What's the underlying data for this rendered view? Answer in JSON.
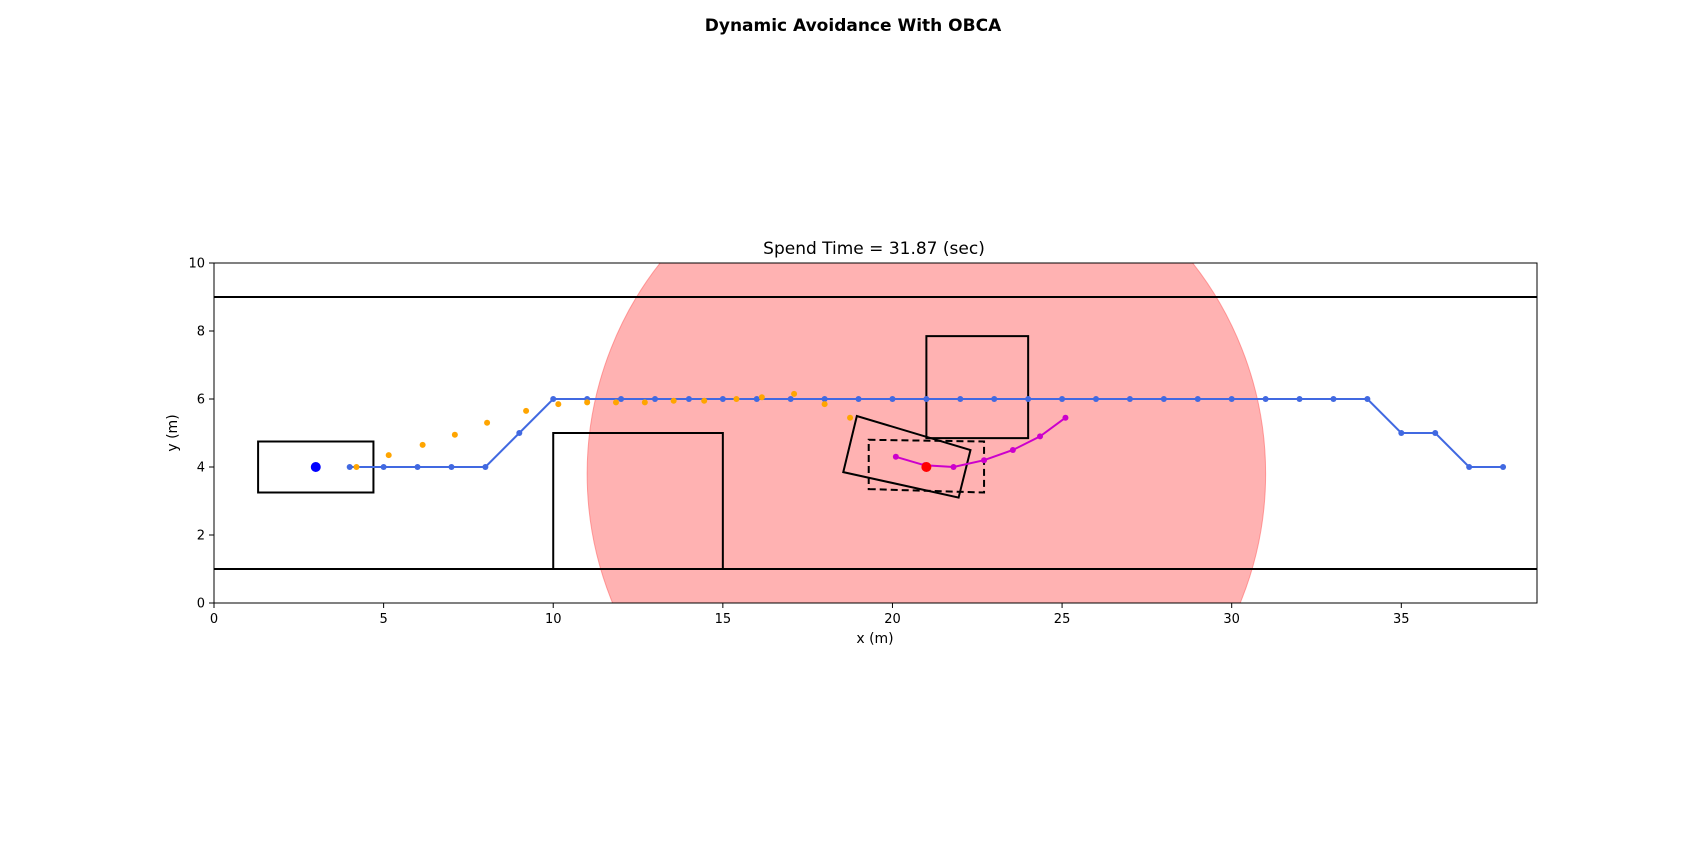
{
  "figure": {
    "suptitle": "Dynamic Avoidance With OBCA"
  },
  "chart_data": {
    "type": "scatter",
    "title": "Spend Time = 31.87 (sec)",
    "xlabel": "x (m)",
    "ylabel": "y (m)",
    "xlim": [
      0,
      39
    ],
    "ylim": [
      0,
      10
    ],
    "xticks": [
      0,
      5,
      10,
      15,
      20,
      25,
      30,
      35
    ],
    "yticks": [
      0,
      2,
      4,
      6,
      8,
      10
    ],
    "grid": false,
    "colors": {
      "reference_path": "#4169e1",
      "predicted_trajectory": "#ffa500",
      "obstacle_trajectory": "#cc00cc",
      "safety_region": "#ff6666",
      "ego_position": "#0000ff",
      "obstacle_position": "#ff0000",
      "outline": "#000000"
    },
    "road_boundaries": [
      {
        "y": 1.0,
        "x": [
          0,
          39
        ]
      },
      {
        "y": 9.0,
        "x": [
          0,
          39
        ]
      }
    ],
    "safety_region": {
      "center": [
        21.0,
        3.8
      ],
      "radius": 10.0
    },
    "static_obstacles": [
      {
        "name": "lower-block",
        "polygon": [
          [
            10,
            1
          ],
          [
            15,
            1
          ],
          [
            15,
            5
          ],
          [
            10,
            5
          ]
        ]
      },
      {
        "name": "upper-block",
        "polygon": [
          [
            21,
            4.85
          ],
          [
            24,
            4.85
          ],
          [
            24,
            7.85
          ],
          [
            21,
            7.85
          ]
        ]
      }
    ],
    "ego_vehicle": {
      "position": [
        3.0,
        4.0
      ],
      "footprint": [
        [
          1.3,
          3.25
        ],
        [
          4.7,
          3.25
        ],
        [
          4.7,
          4.75
        ],
        [
          1.3,
          4.75
        ]
      ]
    },
    "reference_path": {
      "x": [
        4,
        5,
        6,
        7,
        8,
        9,
        10,
        11,
        12,
        13,
        14,
        15,
        16,
        17,
        18,
        19,
        20,
        21,
        22,
        23,
        24,
        25,
        26,
        27,
        28,
        29,
        30,
        31,
        32,
        33,
        34,
        35,
        36,
        37,
        38
      ],
      "y": [
        4,
        4,
        4,
        4,
        4,
        5,
        6,
        6,
        6,
        6,
        6,
        6,
        6,
        6,
        6,
        6,
        6,
        6,
        6,
        6,
        6,
        6,
        6,
        6,
        6,
        6,
        6,
        6,
        6,
        6,
        6,
        5,
        5,
        4,
        4
      ]
    },
    "predicted_trajectory": {
      "x": [
        4.2,
        5.15,
        6.15,
        7.1,
        8.05,
        9.2,
        10.15,
        11.0,
        11.85,
        12.7,
        13.55,
        14.45,
        15.4,
        16.15,
        17.1,
        18.0,
        18.75
      ],
      "y": [
        4.0,
        4.35,
        4.65,
        4.95,
        5.3,
        5.65,
        5.85,
        5.9,
        5.9,
        5.9,
        5.95,
        5.95,
        6.0,
        6.05,
        6.15,
        5.85,
        5.45
      ]
    },
    "obstacle_vehicle": {
      "position": [
        21.0,
        4.0
      ],
      "footprint": [
        [
          18.55,
          3.85
        ],
        [
          21.95,
          3.1
        ],
        [
          22.3,
          4.5
        ],
        [
          18.95,
          5.5
        ]
      ],
      "predicted_footprint": [
        [
          19.3,
          3.35
        ],
        [
          22.7,
          3.25
        ],
        [
          22.7,
          4.75
        ],
        [
          19.3,
          4.8
        ]
      ],
      "trajectory": {
        "x": [
          20.1,
          20.95,
          21.8,
          22.7,
          23.55,
          24.35,
          25.1
        ],
        "y": [
          4.3,
          4.05,
          4.0,
          4.2,
          4.5,
          4.9,
          5.45
        ]
      }
    }
  }
}
